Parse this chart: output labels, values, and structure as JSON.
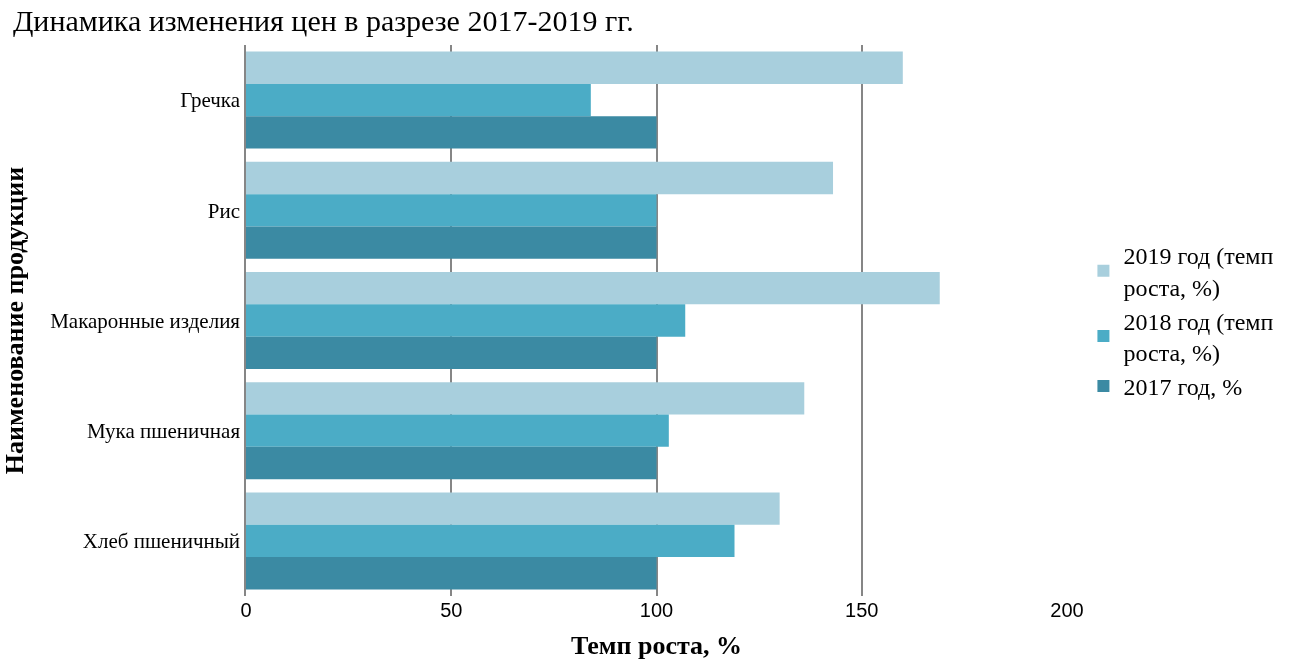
{
  "chart_data": {
    "type": "bar",
    "orientation": "horizontal",
    "title": "Динамика изменения цен в разрезе 2017-2019 гг.",
    "xlabel": "Темп роста, %",
    "ylabel": "Наименование продукции",
    "categories": [
      "Гречка",
      "Рис",
      "Макаронные изделия",
      "Мука пшеничная",
      "Хлеб пшеничный"
    ],
    "series": [
      {
        "name": "2019 год (темп роста, %)",
        "color": "#a8cfdd",
        "values": [
          160,
          143,
          169,
          136,
          130
        ]
      },
      {
        "name": "2018 год (темп роста, %)",
        "color": "#4bacc6",
        "values": [
          84,
          100,
          107,
          103,
          119
        ]
      },
      {
        "name": "2017 год, %",
        "color": "#3b8aa3",
        "values": [
          100,
          100,
          100,
          100,
          100
        ]
      }
    ],
    "xlim": [
      0,
      200
    ],
    "xticks": [
      0,
      50,
      100,
      150,
      200
    ],
    "grid": "x",
    "legend": "right"
  }
}
